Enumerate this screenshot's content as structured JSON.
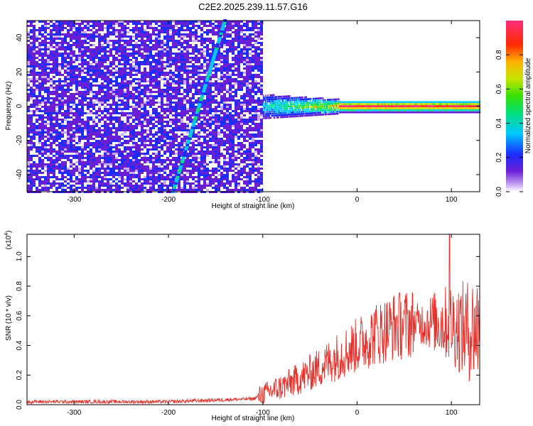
{
  "title": "C2E2.2025.239.11.57.G16",
  "chart_data": [
    {
      "type": "heatmap",
      "name": "spectrogram",
      "xlabel": "Height of straight line (km)",
      "ylabel": "Frequency (Hz)",
      "xlim": [
        -350,
        130
      ],
      "ylim": [
        -50,
        50
      ],
      "xticks": [
        "-300",
        "-200",
        "-100",
        "0",
        "100"
      ],
      "xtick_values": [
        -300,
        -200,
        -100,
        0,
        100
      ],
      "yticks": [
        "40",
        "20",
        "0",
        "-20",
        "-40"
      ],
      "ytick_values": [
        40,
        20,
        0,
        -20,
        -40
      ],
      "noise_region_x": [
        -350,
        -100
      ],
      "diagonal_trace": [
        {
          "x": -195,
          "y": -50
        },
        {
          "x": -140,
          "y": 50
        }
      ],
      "signal_band": {
        "x_start": -100,
        "x_end": 130,
        "center_hz": 0
      }
    },
    {
      "type": "colorbar",
      "name": "amplitude-scale",
      "label": "Normalized spectral amplitude",
      "range": [
        0,
        1
      ],
      "ticks": [
        "0.0",
        "0.2",
        "0.4",
        "0.6",
        "0.8"
      ],
      "tick_values": [
        0.0,
        0.2,
        0.4,
        0.6,
        0.8
      ]
    },
    {
      "type": "line",
      "name": "snr",
      "xlabel": "Height of straight line (km)",
      "ylabel": "SNR (10 * v/v)",
      "yscale_label": "(x10",
      "yscale_exp": "4",
      "xlim": [
        -350,
        130
      ],
      "ylim": [
        0,
        1.15
      ],
      "xticks": [
        "-300",
        "-200",
        "-100",
        "0",
        "100"
      ],
      "xtick_values": [
        -300,
        -200,
        -100,
        0,
        100
      ],
      "yticks": [
        "0.0",
        "0.2",
        "0.4",
        "0.6",
        "0.8",
        "1.0"
      ],
      "ytick_values": [
        0.0,
        0.2,
        0.4,
        0.6,
        0.8,
        1.0
      ],
      "color": "#e8302a",
      "envelope": [
        {
          "x": -350,
          "y": 0.02
        },
        {
          "x": -200,
          "y": 0.02
        },
        {
          "x": -110,
          "y": 0.04
        },
        {
          "x": -100,
          "y": 0.07
        },
        {
          "x": -80,
          "y": 0.12
        },
        {
          "x": -60,
          "y": 0.18
        },
        {
          "x": -40,
          "y": 0.25
        },
        {
          "x": -20,
          "y": 0.33
        },
        {
          "x": 0,
          "y": 0.4
        },
        {
          "x": 20,
          "y": 0.48
        },
        {
          "x": 40,
          "y": 0.53
        },
        {
          "x": 60,
          "y": 0.55
        },
        {
          "x": 80,
          "y": 0.56
        },
        {
          "x": 100,
          "y": 0.55
        },
        {
          "x": 115,
          "y": 0.5
        },
        {
          "x": 130,
          "y": 0.52
        }
      ],
      "peak": {
        "x": 98,
        "y": 1.15
      }
    }
  ]
}
